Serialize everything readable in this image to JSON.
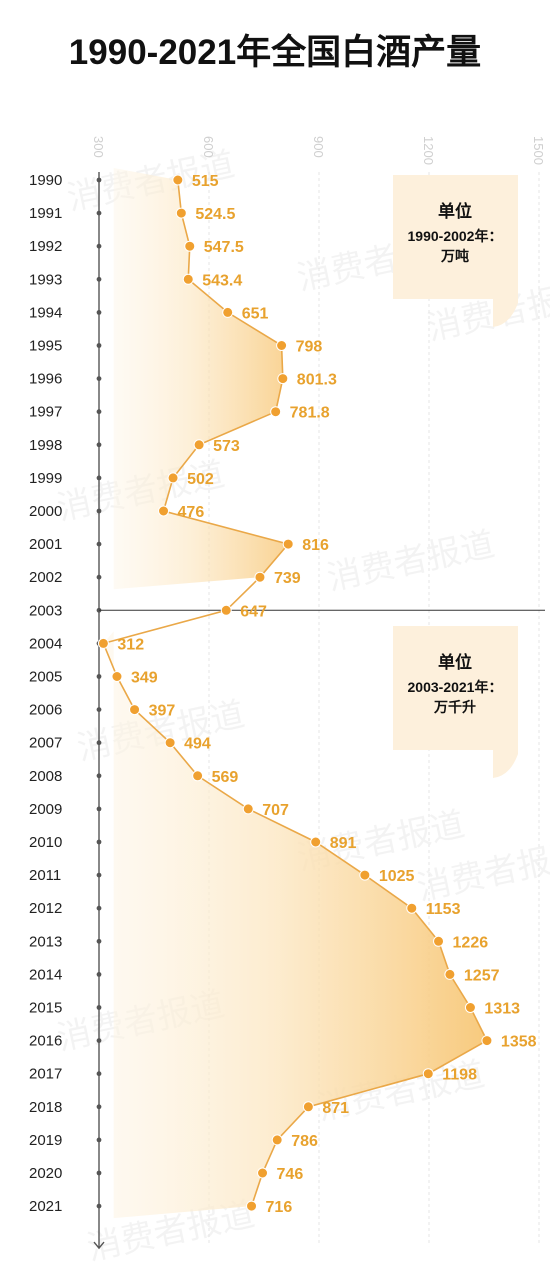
{
  "chart_data": {
    "type": "line",
    "title": "1990-2021年全国白酒产量",
    "orientation": "vertical-categories",
    "x_ticks": [
      300,
      600,
      900,
      1200,
      1500
    ],
    "xlim": [
      300,
      1500
    ],
    "grid": true,
    "categories": [
      "1990",
      "1991",
      "1992",
      "1993",
      "1994",
      "1995",
      "1996",
      "1997",
      "1998",
      "1999",
      "2000",
      "2001",
      "2002",
      "2003",
      "2004",
      "2005",
      "2006",
      "2007",
      "2008",
      "2009",
      "2010",
      "2011",
      "2012",
      "2013",
      "2014",
      "2015",
      "2016",
      "2017",
      "2018",
      "2019",
      "2020",
      "2021"
    ],
    "series": [
      {
        "values": [
          515,
          524.5,
          547.5,
          543.4,
          651,
          798,
          801.3,
          781.8,
          573,
          502,
          476,
          816,
          739,
          647,
          312,
          349,
          397,
          494,
          569,
          707,
          891,
          1025,
          1153,
          1226,
          1257,
          1313,
          1358,
          1198,
          871,
          786,
          746,
          716
        ],
        "labels": [
          "515",
          "524.5",
          "547.5",
          "543.4",
          "651",
          "798",
          "801.3",
          "781.8",
          "573",
          "502",
          "476",
          "816",
          "739",
          "647",
          "312",
          "349",
          "397",
          "494",
          "569",
          "707",
          "891",
          "1025",
          "1153",
          "1226",
          "1257",
          "1313",
          "1358",
          "1198",
          "871",
          "786",
          "746",
          "716"
        ]
      }
    ],
    "divider_after": "2003",
    "units": [
      {
        "title": "单位",
        "line1": "1990-2002年：",
        "line2": "万吨"
      },
      {
        "title": "单位",
        "line1": "2003-2021年：",
        "line2": "万千升"
      }
    ],
    "watermark": "消费者报道",
    "colors": {
      "accent": "#f0a030",
      "line": "#eaa848",
      "label": "#e8a22e",
      "unit_box": "#fdf0dc"
    }
  }
}
